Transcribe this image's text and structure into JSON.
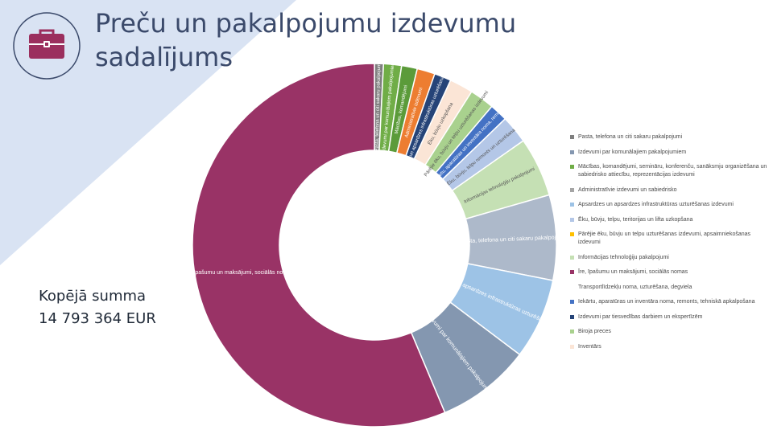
{
  "page": {
    "title": "Preču un pakalpojumu izdevumu\nsadalījums",
    "total_label": "Kopējā summa",
    "total_value": "14 793 364 EUR",
    "icon": "briefcase-icon",
    "colors": {
      "triangle": "#d9e3f3",
      "title": "#3b4a6b",
      "icon": "#9b2f5e"
    }
  },
  "chart_data": {
    "type": "pie",
    "donut": true,
    "legend_position": "right",
    "series": [
      {
        "name": "Pasta, telefona un citi sakaru pakalpojumi",
        "value": 0.8,
        "color": "#7f7f7f",
        "label": "Pasta, telefona un citi sakaru pakalpojumi"
      },
      {
        "name": "Izdevumi par komunālajiem pakalpojumiem",
        "value": 1.6,
        "color": "#70ad47",
        "label": "Izdevumi par komunālajiem pakalpojumiem"
      },
      {
        "name": "Mācības, komandējumi, semināru, konferenču, sanāksmju organizēšana un sabiedrisko attiecību, reprezentācijas izdevumi",
        "value": 1.4,
        "color": "#5b9b3a",
        "label": "Mācības, komandējumi"
      },
      {
        "name": "Administratīvie izdevumi un sabiedrisko",
        "value": 1.6,
        "color": "#ed7d31",
        "label": "Administratīvie izdevumi"
      },
      {
        "name": "Apsardzes un apsardzes infrastruktūras uzturēšanas izdevumi",
        "value": 1.5,
        "color": "#264478",
        "label": "Apsardzes un apsardzes infrastruktūras uzturēšanas izdevumi"
      },
      {
        "name": "Ēku, būvju, telpu, teritorijas un lifta uzkopšana",
        "value": 2.1,
        "color": "#fbe5d6",
        "label": "Ēku, būvju uzkopšana"
      },
      {
        "name": "Pārējie ēku, būvju un telpu uzturēšanas izdevumi, apsaimniekošanas izdevumi",
        "value": 2.2,
        "color": "#a9d18e",
        "label": "Pārējie ēku, būvju un telpu uzturēšanas izdevumi"
      },
      {
        "name": "Informācijas tehnoloģiju pakalpojumi",
        "value": 1.6,
        "color": "#4472c4",
        "label": "Iekārtu, aparatūras un inventāra noma, remonts"
      },
      {
        "name": "Īre, īpašumu un maksājumi, sociālās nomas",
        "value": 2.5,
        "color": "#b4c7e7",
        "label": "Ēku, būvju, telpu remonts un uzturēšana"
      },
      {
        "name": "Transportlīdzekļu noma, uzturēšana, degviela",
        "value": 5.3,
        "color": "#c5e0b4",
        "label": "Informācijas tehnoloģiju pakalpojumi"
      },
      {
        "name": "Iekārtu, aparatūras un inventāra noma, remonts, tehniskā apkalpošana",
        "value": 7.6,
        "color": "#adb9ca",
        "label": "Pasta, telefona un citi sakaru pakalpojumi"
      },
      {
        "name": "Izdevumi par tiesvedības darbiem un ekspertīzēm",
        "value": 7.2,
        "color": "#9dc3e6",
        "label": "Apsardzes un apsardzes infrastruktūras uzturēšanas izdevumi"
      },
      {
        "name": "Biroja preces",
        "value": 8.4,
        "color": "#8497b0",
        "label": "Izdevumi par komunālajiem pakalpojumiem"
      },
      {
        "name": "Inventārs",
        "value": 56.5,
        "color": "#993366",
        "label": "Īre, īpašumu un maksājumi, sociālās nomas"
      }
    ],
    "legend": [
      {
        "label": "Pasta, telefona un citi sakaru pakalpojumi",
        "color": "#7f7f7f"
      },
      {
        "label": "Izdevumi par komunālajiem pakalpojumiem",
        "color": "#8497b0"
      },
      {
        "label": "Mācības, komandējumi, semināru, konferenču, sanāksmju organizēšana un sabiedrisko attiecību, reprezentācijas izdevumi",
        "color": "#70ad47"
      },
      {
        "label": "Administratīvie izdevumi un sabiedrisko",
        "color": "#a5a5a5"
      },
      {
        "label": "Apsardzes un apsardzes infrastruktūras uzturēšanas izdevumi",
        "color": "#9dc3e6"
      },
      {
        "label": "Ēku, būvju, telpu, teritorijas un lifta uzkopšana",
        "color": "#b4c7e7"
      },
      {
        "label": "Pārējie ēku, būvju un telpu uzturēšanas izdevumi, apsaimniekošanas izdevumi",
        "color": "#ffc000"
      },
      {
        "label": "Informācijas tehnoloģiju pakalpojumi",
        "color": "#c5e0b4"
      },
      {
        "label": "Īre, īpašumu un maksājumi, sociālās nomas",
        "color": "#993366"
      },
      {
        "label": "Transportlīdzekļu noma, uzturēšana, degviela",
        "color": "#ffffff"
      },
      {
        "label": "Iekārtu, aparatūras un inventāra noma, remonts, tehniskā apkalpošana",
        "color": "#4472c4"
      },
      {
        "label": "Izdevumi par tiesvedības darbiem un ekspertīzēm",
        "color": "#264478"
      },
      {
        "label": "Biroja preces",
        "color": "#a9d18e"
      },
      {
        "label": "Inventārs",
        "color": "#fbe5d6"
      }
    ]
  }
}
